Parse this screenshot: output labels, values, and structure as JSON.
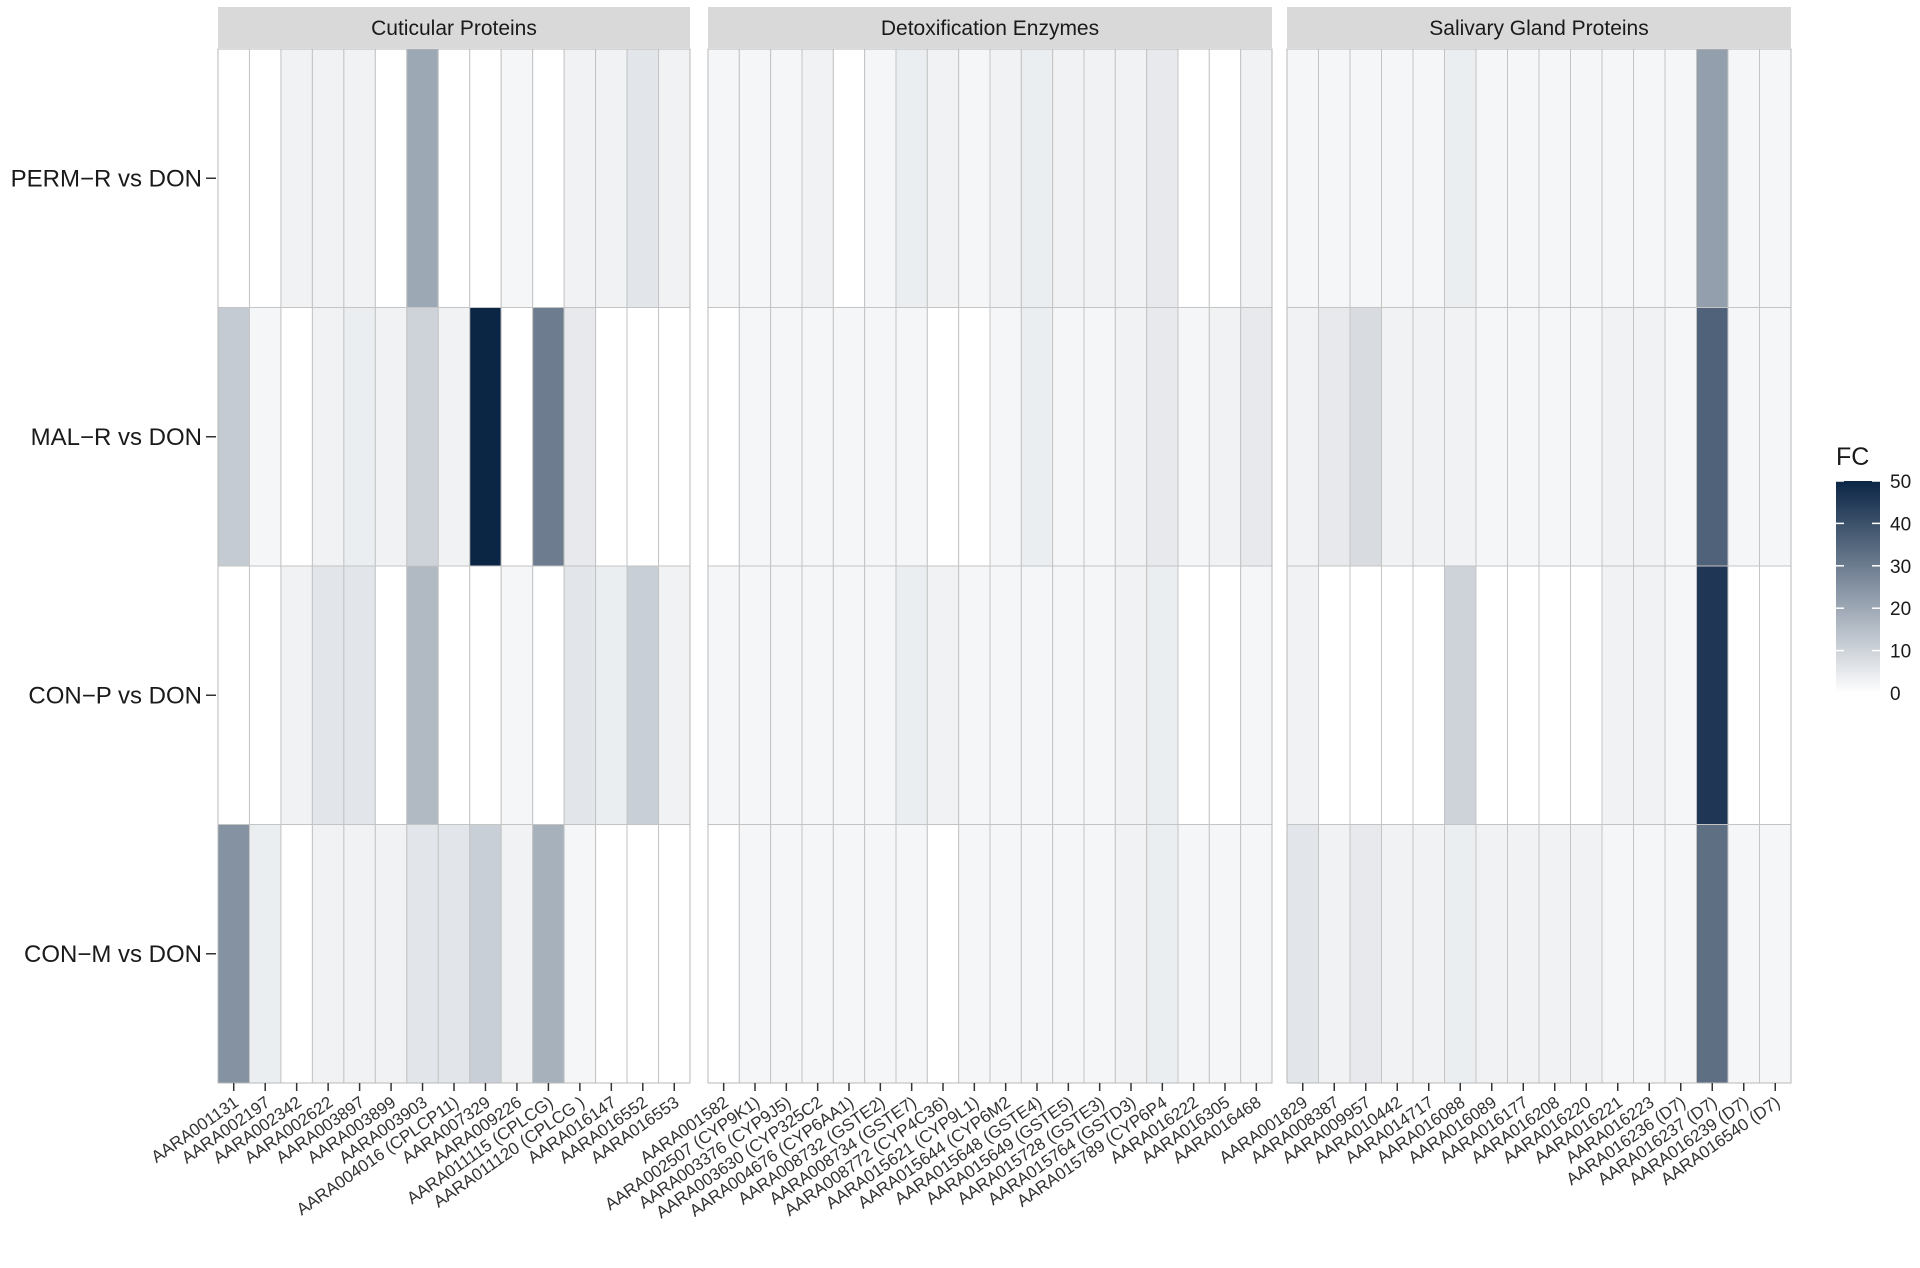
{
  "chart_data": {
    "type": "heatmap",
    "rows": [
      "PERM−R vs DON",
      "MAL−R vs DON",
      "CON−P vs DON",
      "CON−M vs DON"
    ],
    "color_scale": {
      "low": "#ffffff",
      "high": "#0b2545",
      "min": 0,
      "max": 50,
      "ticks": [
        0,
        10,
        20,
        30,
        40,
        50
      ]
    },
    "legend": {
      "title": "FC",
      "placement": "right"
    },
    "panels": [
      {
        "title": "Cuticular Proteins",
        "columns": [
          "AARA001131",
          "AARA002197",
          "AARA002342",
          "AARA002622",
          "AARA003897",
          "AARA003899",
          "AARA003903",
          "AARA004016 (CPLCP11)",
          "AARA007329",
          "AARA009226",
          "AARA011115 (CPLCG)",
          "AARA011120 (CPLCG )",
          "AARA016147",
          "AARA016552",
          "AARA016553"
        ],
        "values": [
          [
            0,
            0,
            3,
            3,
            3,
            0,
            20,
            0,
            0,
            2,
            0,
            3,
            3,
            6,
            3
          ],
          [
            12,
            2,
            0,
            3,
            4,
            3,
            10,
            3,
            50,
            0,
            30,
            5,
            0,
            0,
            0
          ],
          [
            0,
            0,
            3,
            6,
            6,
            0,
            16,
            0,
            0,
            2,
            0,
            6,
            4,
            11,
            3
          ],
          [
            25,
            4,
            0,
            3,
            3,
            3,
            6,
            6,
            11,
            3,
            18,
            2,
            0,
            0,
            0
          ]
        ]
      },
      {
        "title": "Detoxification Enzymes",
        "columns": [
          "AARA001582",
          "AARA002507 (CYP9K1)",
          "AARA003376 (CYP9J5)",
          "AARA003630 (CYP325C2",
          "AARA004676 (CYP6AA1)",
          "AARA008732 (GSTE2)",
          "AARA008734 (GSTE7)",
          "AARA008772 (CYP4C36)",
          "AARA015621 (CYP9L1)",
          "AARA015644 (CYP6M2",
          "AARA015648 (GSTE4)",
          "AARA015649 (GSTE5)",
          "AARA015728 (GSTE3)",
          "AARA015764 (GSTD3)",
          "AARA015789 (CYP6P4",
          "AARA016222",
          "AARA016305",
          "AARA016468"
        ],
        "values": [
          [
            2,
            2,
            2,
            3,
            0,
            2,
            4,
            3,
            2,
            3,
            4,
            3,
            3,
            3,
            5,
            0,
            0,
            3
          ],
          [
            0,
            2,
            2,
            2,
            2,
            2,
            2,
            0,
            0,
            2,
            4,
            2,
            2,
            3,
            5,
            2,
            3,
            5
          ],
          [
            2,
            2,
            2,
            2,
            2,
            2,
            4,
            3,
            2,
            2,
            2,
            2,
            2,
            3,
            4,
            0,
            0,
            2
          ],
          [
            0,
            2,
            2,
            2,
            2,
            2,
            2,
            0,
            2,
            2,
            2,
            2,
            2,
            3,
            4,
            2,
            2,
            2
          ]
        ]
      },
      {
        "title": "Salivary Gland Proteins",
        "columns": [
          "AARA001829",
          "AARA008387",
          "AARA009957",
          "AARA010442",
          "AARA014717",
          "AARA016088",
          "AARA016089",
          "AARA016177",
          "AARA016208",
          "AARA016220",
          "AARA016221",
          "AARA016223",
          "AARA016236 (D7)",
          "AARA016237 (D7)",
          "AARA016239 (D7)",
          "AARA016540 (D7)"
        ],
        "values": [
          [
            2,
            2,
            2,
            2,
            2,
            4,
            2,
            2,
            2,
            2,
            2,
            2,
            2,
            22,
            2,
            2
          ],
          [
            3,
            5,
            8,
            3,
            3,
            3,
            2,
            2,
            2,
            2,
            3,
            3,
            2,
            36,
            2,
            2
          ],
          [
            3,
            0,
            0,
            0,
            0,
            10,
            0,
            0,
            0,
            0,
            3,
            3,
            2,
            46,
            0,
            0
          ],
          [
            6,
            3,
            5,
            3,
            3,
            4,
            3,
            3,
            3,
            3,
            2,
            2,
            2,
            33,
            2,
            2
          ]
        ]
      }
    ]
  }
}
